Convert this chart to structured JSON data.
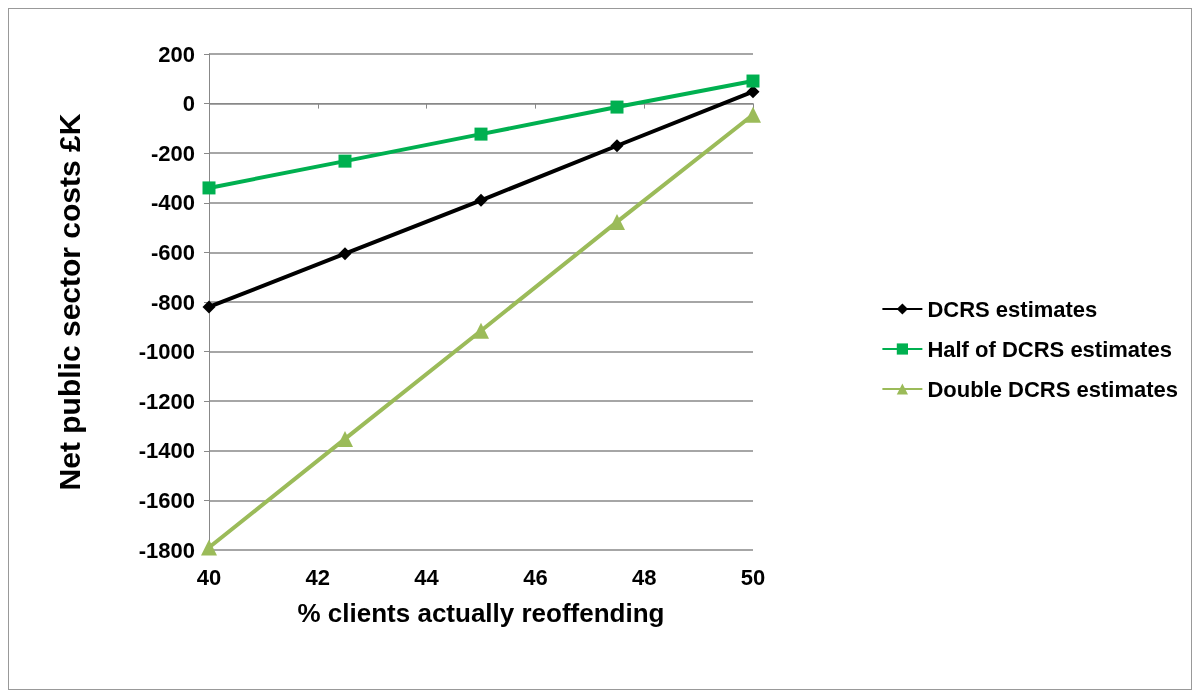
{
  "chart_data": {
    "type": "line",
    "xlabel": "% clients actually reoffending",
    "ylabel": "Net public sector costs £K",
    "x": [
      40,
      42.5,
      45,
      47.5,
      50
    ],
    "series": [
      {
        "name": "DCRS estimates",
        "color": "#000000",
        "marker": "diamond",
        "values": [
          -820,
          -605,
          -390,
          -170,
          48
        ]
      },
      {
        "name": "Half of DCRS estimates",
        "color": "#00b050",
        "marker": "square",
        "values": [
          -340,
          -232,
          -123,
          -14,
          91
        ]
      },
      {
        "name": "Double DCRS estimates",
        "color": "#9bbb59",
        "marker": "triangle",
        "values": [
          -1790,
          -1352,
          -916,
          -477,
          -45
        ]
      }
    ],
    "xlim": [
      40,
      50
    ],
    "xticks": [
      40,
      42,
      44,
      46,
      48,
      50
    ],
    "ylim": [
      -1800,
      200
    ],
    "yticks": [
      -1800,
      -1600,
      -1400,
      -1200,
      -1000,
      -800,
      -600,
      -400,
      -200,
      0,
      200
    ],
    "grid": "y",
    "legend": "right",
    "line_style": "solid"
  }
}
